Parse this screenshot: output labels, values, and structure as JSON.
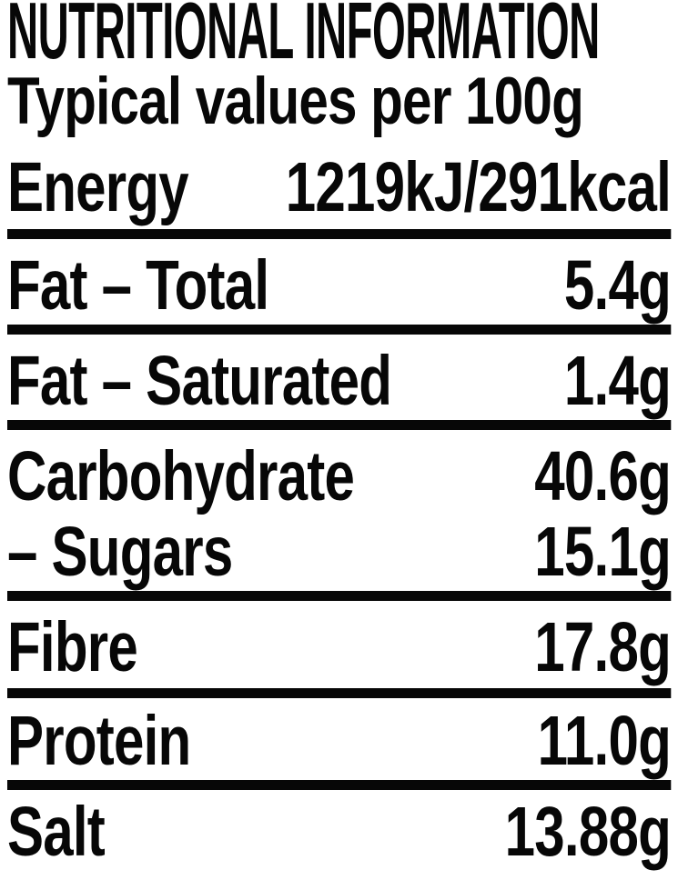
{
  "label": {
    "title": "NUTRITIONAL INFORMATION",
    "subtitle": "Typical values per 100g",
    "rows": [
      {
        "name": "Energy",
        "value": "1219kJ/291kcal",
        "divider_below": true
      },
      {
        "name": "Fat – Total",
        "value": "5.4g",
        "divider_below": true
      },
      {
        "name": "Fat – Saturated",
        "value": "1.4g",
        "divider_below": true
      },
      {
        "name": "Carbohydrate",
        "value": "40.6g",
        "divider_below": false
      },
      {
        "name": "– Sugars",
        "value": "15.1g",
        "divider_below": true
      },
      {
        "name": "Fibre",
        "value": "17.8g",
        "divider_below": true
      },
      {
        "name": "Protein",
        "value": "11.0g",
        "divider_below": true
      },
      {
        "name": "Salt",
        "value": "13.88g",
        "divider_below": false
      }
    ],
    "colors": {
      "text": "#070707",
      "background": "#ffffff",
      "divider": "#070707"
    }
  }
}
